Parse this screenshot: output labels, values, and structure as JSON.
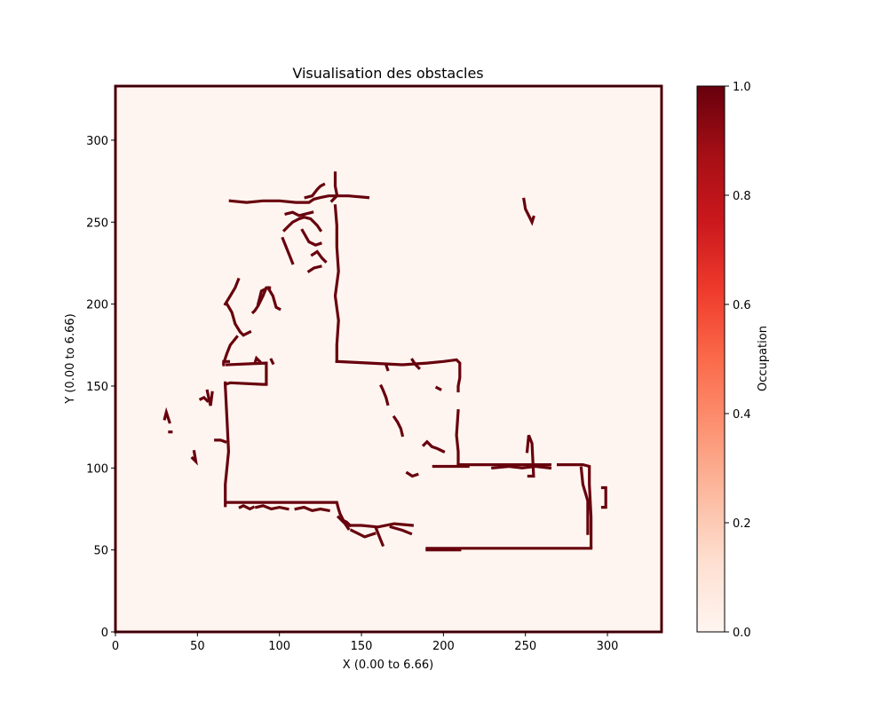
{
  "chart_data": {
    "type": "heatmap",
    "title": "Visualisation des obstacles",
    "xlabel": "X (0.00 to 6.66)",
    "ylabel": "Y (0.00 to 6.66)",
    "xlim": [
      0,
      333
    ],
    "ylim": [
      0,
      333
    ],
    "x_ticks": [
      0,
      50,
      100,
      150,
      200,
      250,
      300
    ],
    "y_ticks": [
      0,
      50,
      100,
      150,
      200,
      250,
      300
    ],
    "colormap": "Reds",
    "colorbar": {
      "label": "Occupation",
      "range": [
        0.0,
        1.0
      ],
      "ticks": [
        "0.0",
        "0.2",
        "0.4",
        "0.6",
        "0.8",
        "1.0"
      ]
    },
    "occupied_value": 1.0,
    "background_value": 0.0,
    "colors": {
      "background": "#fff5f0",
      "occupied": "#67000d"
    },
    "obstacles": [
      {
        "x": [
          68,
          68,
          135,
          136,
          137,
          139,
          141,
          143
        ],
        "y": [
          79,
          79,
          79,
          75,
          72,
          68,
          67,
          65
        ]
      },
      {
        "x": [
          67,
          67,
          69,
          68,
          67,
          67
        ],
        "y": [
          77,
          90,
          110,
          130,
          150,
          152
        ]
      },
      {
        "x": [
          67,
          70,
          90,
          92,
          92,
          68
        ],
        "y": [
          151,
          152,
          151,
          151,
          164,
          163
        ]
      },
      {
        "x": [
          66,
          66,
          69
        ],
        "y": [
          163,
          165,
          165
        ]
      },
      {
        "x": [
          135,
          135,
          136,
          134,
          136,
          135,
          135,
          134
        ],
        "y": [
          165,
          175,
          190,
          205,
          220,
          235,
          248,
          260
        ]
      },
      {
        "x": [
          135,
          155,
          175,
          190,
          200,
          208,
          210,
          210,
          209,
          209
        ],
        "y": [
          165,
          164,
          163,
          164,
          165,
          166,
          164,
          155,
          150,
          147
        ]
      },
      {
        "x": [
          209,
          208,
          209,
          209
        ],
        "y": [
          135,
          120,
          110,
          102
        ]
      },
      {
        "x": [
          209,
          230,
          250,
          265
        ],
        "y": [
          102,
          102,
          102,
          102
        ]
      },
      {
        "x": [
          270,
          285,
          289,
          289,
          290,
          290
        ],
        "y": [
          102,
          102,
          101,
          90,
          70,
          52
        ]
      },
      {
        "x": [
          290,
          270,
          250,
          230,
          210,
          200,
          190
        ],
        "y": [
          51,
          51,
          51,
          51,
          51,
          51,
          51
        ]
      },
      {
        "x": [
          190,
          210
        ],
        "y": [
          50,
          50
        ]
      },
      {
        "x": [
          143,
          150,
          160,
          170,
          181
        ],
        "y": [
          65,
          65,
          64,
          66,
          65
        ]
      },
      {
        "x": [
          194,
          200,
          210,
          215
        ],
        "y": [
          101,
          101,
          101,
          101
        ]
      },
      {
        "x": [
          188,
          190,
          193,
          196,
          198,
          200
        ],
        "y": [
          114,
          116,
          113,
          112,
          111,
          110
        ]
      },
      {
        "x": [
          284,
          285,
          288,
          288
        ],
        "y": [
          100,
          90,
          80,
          60
        ]
      },
      {
        "x": [
          297,
          299,
          299,
          297
        ],
        "y": [
          88,
          88,
          76,
          76
        ]
      },
      {
        "x": [
          249,
          250,
          253,
          254,
          255
        ],
        "y": [
          264,
          258,
          252,
          250,
          253
        ]
      },
      {
        "x": [
          252,
          255,
          254,
          252,
          251
        ],
        "y": [
          95,
          95,
          115,
          120,
          110
        ]
      },
      {
        "x": [
          70,
          80,
          90,
          100,
          110,
          118,
          121,
          125,
          130,
          134
        ],
        "y": [
          263,
          262,
          263,
          263,
          262,
          262,
          264,
          265,
          266,
          266
        ]
      },
      {
        "x": [
          132,
          135,
          142,
          154
        ],
        "y": [
          263,
          266,
          266,
          265
        ]
      },
      {
        "x": [
          135,
          134,
          134
        ],
        "y": [
          267,
          272,
          280
        ]
      },
      {
        "x": [
          116,
          120,
          123,
          125,
          127
        ],
        "y": [
          265,
          266,
          270,
          272,
          273
        ]
      },
      {
        "x": [
          66,
          68,
          70,
          74
        ],
        "y": [
          164,
          170,
          175,
          180
        ]
      },
      {
        "x": [
          68,
          71,
          73,
          76,
          78,
          82
        ],
        "y": [
          200,
          195,
          188,
          183,
          181,
          183
        ]
      },
      {
        "x": [
          67,
          70,
          73,
          75
        ],
        "y": [
          200,
          205,
          210,
          215
        ]
      },
      {
        "x": [
          84,
          85,
          87,
          90,
          92,
          94
        ],
        "y": [
          195,
          196,
          199,
          205,
          210,
          210
        ]
      },
      {
        "x": [
          87,
          89,
          93,
          96,
          98,
          100
        ],
        "y": [
          200,
          208,
          210,
          205,
          198,
          197
        ]
      },
      {
        "x": [
          103,
          105,
          108,
          112,
          115,
          119,
          121,
          123,
          125
        ],
        "y": [
          245,
          247,
          250,
          252,
          253,
          252,
          250,
          248,
          245
        ]
      },
      {
        "x": [
          102,
          104,
          106,
          108
        ],
        "y": [
          240,
          235,
          230,
          225
        ]
      },
      {
        "x": [
          114,
          118,
          122,
          125
        ],
        "y": [
          245,
          238,
          236,
          237
        ]
      },
      {
        "x": [
          120,
          123,
          126,
          128
        ],
        "y": [
          230,
          232,
          228,
          226
        ]
      },
      {
        "x": [
          118,
          121,
          125
        ],
        "y": [
          220,
          222,
          223
        ]
      },
      {
        "x": [
          104,
          108,
          112,
          116,
          120
        ],
        "y": [
          255,
          256,
          254,
          255,
          256
        ]
      },
      {
        "x": [
          76,
          78,
          80,
          82,
          84
        ],
        "y": [
          76,
          77,
          76,
          75,
          76
        ]
      },
      {
        "x": [
          86,
          90,
          95,
          100,
          105
        ],
        "y": [
          76,
          77,
          75,
          76,
          75
        ]
      },
      {
        "x": [
          110,
          115,
          120,
          125,
          130
        ],
        "y": [
          75,
          76,
          74,
          75,
          74
        ]
      },
      {
        "x": [
          136,
          140,
          142
        ],
        "y": [
          70,
          66,
          63
        ]
      },
      {
        "x": [
          144,
          148,
          152,
          155,
          158
        ],
        "y": [
          62,
          60,
          58,
          59,
          60
        ]
      },
      {
        "x": [
          159,
          161,
          163
        ],
        "y": [
          63,
          58,
          53
        ]
      },
      {
        "x": [
          168,
          175,
          180
        ],
        "y": [
          64,
          62,
          60
        ]
      },
      {
        "x": [
          56,
          57,
          58,
          59
        ],
        "y": [
          147,
          142,
          138,
          146
        ]
      },
      {
        "x": [
          52,
          54,
          56
        ],
        "y": [
          142,
          143,
          141
        ]
      },
      {
        "x": [
          30,
          31,
          32,
          33
        ],
        "y": [
          130,
          134,
          131,
          128
        ]
      },
      {
        "x": [
          33,
          34
        ],
        "y": [
          122,
          122
        ]
      },
      {
        "x": [
          61,
          64,
          67
        ],
        "y": [
          117,
          117,
          116
        ]
      },
      {
        "x": [
          48,
          49,
          47
        ],
        "y": [
          110,
          104,
          106
        ]
      },
      {
        "x": [
          85,
          86,
          88
        ],
        "y": [
          164,
          167,
          165
        ]
      },
      {
        "x": [
          95,
          96
        ],
        "y": [
          166,
          164
        ]
      },
      {
        "x": [
          165,
          166
        ],
        "y": [
          163,
          160
        ]
      },
      {
        "x": [
          162,
          163,
          165,
          166
        ],
        "y": [
          150,
          148,
          143,
          139
        ]
      },
      {
        "x": [
          170,
          172,
          174,
          175
        ],
        "y": [
          131,
          128,
          124,
          120
        ]
      },
      {
        "x": [
          181,
          183,
          184,
          185
        ],
        "y": [
          166,
          163,
          162,
          161
        ]
      },
      {
        "x": [
          196,
          198
        ],
        "y": [
          149,
          148
        ]
      },
      {
        "x": [
          178,
          181,
          184
        ],
        "y": [
          97,
          95,
          96
        ]
      },
      {
        "x": [
          230,
          240,
          248,
          256,
          265
        ],
        "y": [
          100,
          101,
          100,
          101,
          100
        ]
      }
    ]
  }
}
